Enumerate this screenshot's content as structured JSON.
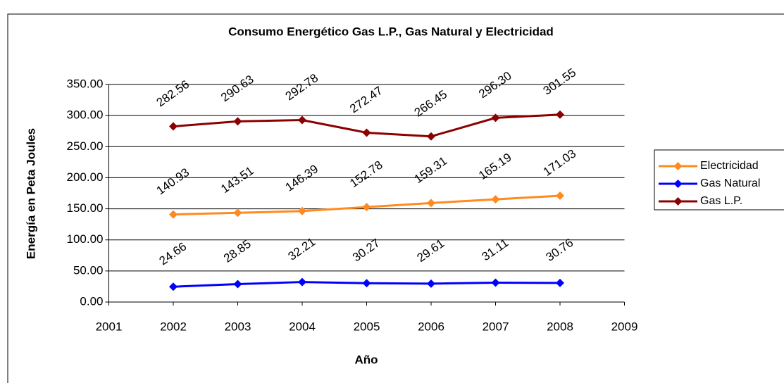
{
  "chart_data": {
    "type": "line",
    "title": "Consumo Energético Gas L.P., Gas Natural y Electricidad",
    "x_label": "Año",
    "y_label": "Energía en Peta Joules",
    "x": [
      2002,
      2003,
      2004,
      2005,
      2006,
      2007,
      2008
    ],
    "xlim": [
      2001,
      2009
    ],
    "xticks": [
      2001,
      2002,
      2003,
      2004,
      2005,
      2006,
      2007,
      2008,
      2009
    ],
    "ylim": [
      0,
      350
    ],
    "yticks": [
      {
        "value": 0,
        "label": "0.00"
      },
      {
        "value": 50,
        "label": "50.00"
      },
      {
        "value": 100,
        "label": "100.00"
      },
      {
        "value": 150,
        "label": "150.00"
      },
      {
        "value": 200,
        "label": "200.00"
      },
      {
        "value": 250,
        "label": "250.00"
      },
      {
        "value": 300,
        "label": "300.00"
      },
      {
        "value": 350,
        "label": "350.00"
      }
    ],
    "grid": true,
    "legend": "right",
    "series": [
      {
        "name": "Electricidad",
        "color": "#ff8a1f",
        "values": [
          140.93,
          143.51,
          146.39,
          152.78,
          159.31,
          165.19,
          171.03
        ],
        "value_labels": [
          "140.93",
          "143.51",
          "146.39",
          "152.78",
          "159.31",
          "165.19",
          "171.03"
        ]
      },
      {
        "name": "Gas Natural",
        "color": "#0000ff",
        "values": [
          24.66,
          28.85,
          32.21,
          30.27,
          29.61,
          31.11,
          30.76
        ],
        "value_labels": [
          "24.66",
          "28.85",
          "32.21",
          "30.27",
          "29.61",
          "31.11",
          "30.76"
        ]
      },
      {
        "name": "Gas L.P.",
        "color": "#8b0000",
        "values": [
          282.56,
          290.63,
          292.78,
          272.47,
          266.45,
          296.3,
          301.55
        ],
        "value_labels": [
          "282.56",
          "290.63",
          "292.78",
          "272.47",
          "266.45",
          "296.30",
          "301.55"
        ]
      }
    ]
  }
}
